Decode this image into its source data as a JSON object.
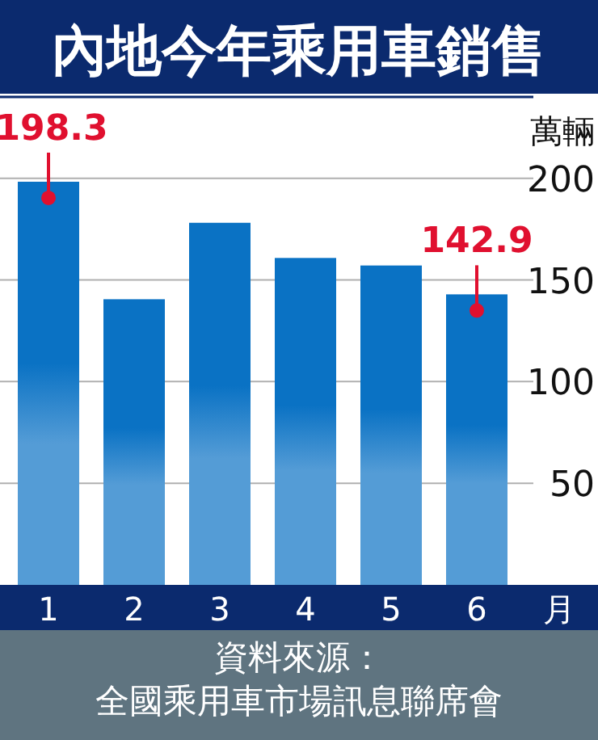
{
  "chart_data": {
    "type": "bar",
    "title": "內地今年乘用車銷售",
    "ylabel": "萬輛",
    "xlabel": "月",
    "categories": [
      "1",
      "2",
      "3",
      "4",
      "5",
      "6"
    ],
    "values": [
      198.3,
      140.5,
      178.1,
      160.8,
      157.1,
      142.9
    ],
    "value_labels": [
      "198.3",
      null,
      null,
      null,
      null,
      "142.9"
    ],
    "color": "#0a72c4",
    "ylim": [
      0,
      240
    ],
    "yticks": [
      50,
      100,
      150,
      200
    ],
    "grid": "y",
    "annotations": [
      "資料來源：",
      "全國乘用車市場訊息聯席會"
    ]
  }
}
